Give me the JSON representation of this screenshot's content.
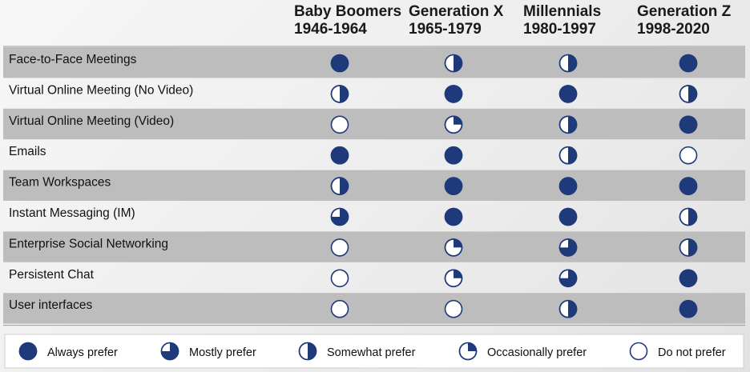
{
  "colors": {
    "accent": "#1f3a7a",
    "stripe": "#bdbdbd",
    "white": "#ffffff"
  },
  "chart_data": {
    "type": "table",
    "columns": [
      {
        "name": "Baby Boomers",
        "years": "1946-1964"
      },
      {
        "name": "Generation X",
        "years": "1965-1979"
      },
      {
        "name": "Millennials",
        "years": "1980-1997"
      },
      {
        "name": "Generation Z",
        "years": "1998-2020"
      }
    ],
    "rows": [
      {
        "label": "Face-to-Face Meetings",
        "values": [
          1.0,
          0.5,
          0.5,
          1.0
        ]
      },
      {
        "label": "Virtual Online Meeting (No Video)",
        "values": [
          0.5,
          1.0,
          1.0,
          0.5
        ]
      },
      {
        "label": "Virtual Online Meeting (Video)",
        "values": [
          0.0,
          0.25,
          0.5,
          1.0
        ]
      },
      {
        "label": "Emails",
        "values": [
          1.0,
          1.0,
          0.5,
          0.0
        ]
      },
      {
        "label": "Team Workspaces",
        "values": [
          0.5,
          1.0,
          1.0,
          1.0
        ]
      },
      {
        "label": "Instant Messaging (IM)",
        "values": [
          0.75,
          1.0,
          1.0,
          0.5
        ]
      },
      {
        "label": "Enterprise Social Networking",
        "values": [
          0.0,
          0.25,
          0.75,
          0.5
        ]
      },
      {
        "label": "Persistent Chat",
        "values": [
          0.0,
          0.25,
          0.75,
          1.0
        ]
      },
      {
        "label": "User interfaces",
        "values": [
          0.0,
          0.0,
          0.5,
          1.0
        ]
      }
    ],
    "legend": [
      {
        "label": "Always prefer",
        "value": 1.0
      },
      {
        "label": "Mostly prefer",
        "value": 0.75
      },
      {
        "label": "Somewhat prefer",
        "value": 0.5
      },
      {
        "label": "Occasionally prefer",
        "value": 0.25
      },
      {
        "label": "Do not prefer",
        "value": 0.0
      }
    ]
  }
}
